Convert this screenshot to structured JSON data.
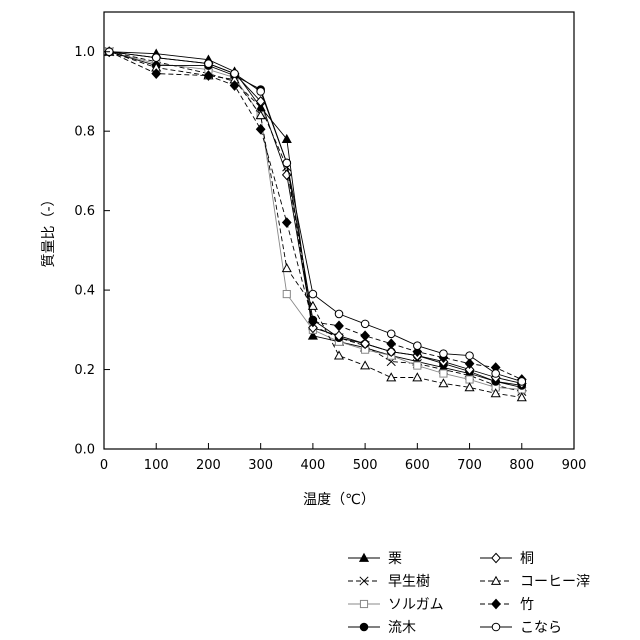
{
  "chart_data": {
    "type": "line",
    "title": "",
    "xlabel": "温度（℃）",
    "ylabel": "質量比（-）",
    "xlim": [
      0,
      900
    ],
    "ylim": [
      0.0,
      1.1
    ],
    "xticks": [
      "0",
      "100",
      "200",
      "300",
      "400",
      "500",
      "600",
      "700",
      "800",
      "900"
    ],
    "xtick_values": [
      0,
      100,
      200,
      300,
      400,
      500,
      600,
      700,
      800,
      900
    ],
    "yticks": [
      "0.0",
      "0.2",
      "0.4",
      "0.6",
      "0.8",
      "1.0"
    ],
    "ytick_values": [
      0.0,
      0.2,
      0.4,
      0.6,
      0.8,
      1.0
    ],
    "grid": false,
    "legend_position": "bottom-right",
    "series": [
      {
        "name": "栗",
        "marker": "triangle-filled",
        "dash": "solid",
        "color": "#000000",
        "x": [
          10,
          100,
          200,
          250,
          300,
          350,
          400,
          450,
          500,
          550,
          600,
          650,
          700,
          750,
          800
        ],
        "y": [
          1.0,
          0.995,
          0.98,
          0.95,
          0.86,
          0.78,
          0.285,
          0.27,
          0.255,
          0.235,
          0.22,
          0.205,
          0.19,
          0.17,
          0.155
        ]
      },
      {
        "name": "早生樹",
        "marker": "x",
        "dash": "dashed",
        "color": "#000000",
        "x": [
          10,
          100,
          200,
          250,
          300,
          350,
          400,
          450,
          500,
          550,
          600,
          650,
          700,
          750,
          800
        ],
        "y": [
          1.0,
          0.975,
          0.945,
          0.925,
          0.86,
          0.71,
          0.31,
          0.28,
          0.26,
          0.22,
          0.215,
          0.2,
          0.185,
          0.16,
          0.145
        ]
      },
      {
        "name": "ソルガム",
        "marker": "square-open",
        "dash": "solid",
        "color": "#888888",
        "x": [
          10,
          100,
          200,
          250,
          300,
          350,
          400,
          450,
          500,
          550,
          600,
          650,
          700,
          750,
          800
        ],
        "y": [
          1.0,
          0.97,
          0.955,
          0.935,
          0.84,
          0.39,
          0.3,
          0.27,
          0.25,
          0.235,
          0.21,
          0.19,
          0.175,
          0.155,
          0.15
        ]
      },
      {
        "name": "流木",
        "marker": "circle-filled",
        "dash": "solid",
        "color": "#000000",
        "x": [
          10,
          100,
          200,
          250,
          300,
          350,
          400,
          450,
          500,
          550,
          600,
          650,
          700,
          750,
          800
        ],
        "y": [
          1.0,
          0.965,
          0.965,
          0.94,
          0.905,
          0.72,
          0.325,
          0.28,
          0.265,
          0.245,
          0.235,
          0.215,
          0.195,
          0.17,
          0.16
        ]
      },
      {
        "name": "桐",
        "marker": "diamond-open",
        "dash": "solid",
        "color": "#000000",
        "x": [
          10,
          100,
          200,
          250,
          300,
          350,
          400,
          450,
          500,
          550,
          600,
          650,
          700,
          750,
          800
        ],
        "y": [
          1.0,
          0.985,
          0.97,
          0.945,
          0.875,
          0.69,
          0.305,
          0.285,
          0.265,
          0.245,
          0.235,
          0.22,
          0.2,
          0.18,
          0.165
        ]
      },
      {
        "name": "コーヒー滓",
        "marker": "triangle-open",
        "dash": "dashed",
        "color": "#000000",
        "x": [
          10,
          100,
          200,
          250,
          300,
          350,
          400,
          450,
          500,
          550,
          600,
          650,
          700,
          750,
          800
        ],
        "y": [
          1.0,
          0.96,
          0.94,
          0.93,
          0.84,
          0.455,
          0.36,
          0.235,
          0.21,
          0.18,
          0.18,
          0.165,
          0.155,
          0.14,
          0.13
        ]
      },
      {
        "name": "竹",
        "marker": "diamond-filled",
        "dash": "dashed",
        "color": "#000000",
        "x": [
          10,
          100,
          200,
          250,
          300,
          350,
          400,
          450,
          500,
          550,
          600,
          650,
          700,
          750,
          800
        ],
        "y": [
          1.0,
          0.945,
          0.94,
          0.915,
          0.805,
          0.57,
          0.32,
          0.31,
          0.285,
          0.265,
          0.245,
          0.23,
          0.215,
          0.205,
          0.175
        ]
      },
      {
        "name": "こなら",
        "marker": "circle-open",
        "dash": "solid",
        "color": "#000000",
        "x": [
          10,
          100,
          200,
          250,
          300,
          350,
          400,
          450,
          500,
          550,
          600,
          650,
          700,
          750,
          800
        ],
        "y": [
          1.0,
          0.985,
          0.97,
          0.945,
          0.9,
          0.72,
          0.39,
          0.34,
          0.315,
          0.29,
          0.26,
          0.24,
          0.235,
          0.19,
          0.17
        ]
      }
    ]
  }
}
